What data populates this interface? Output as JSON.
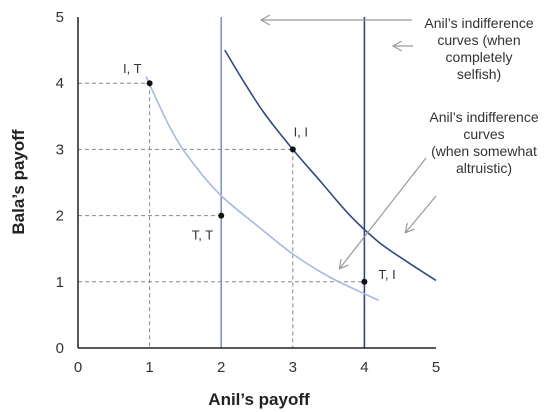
{
  "chart_data": {
    "type": "line",
    "xlabel": "Anil’s payoff",
    "ylabel": "Bala’s payoff",
    "xlim": [
      0,
      5
    ],
    "ylim": [
      0,
      5
    ],
    "xticks": [
      "0",
      "1",
      "2",
      "3",
      "4",
      "5"
    ],
    "yticks": [
      "0",
      "1",
      "2",
      "3",
      "4",
      "5"
    ],
    "grid": false,
    "points": [
      {
        "label": "I, T",
        "x": 1,
        "y": 4
      },
      {
        "label": "T, T",
        "x": 2,
        "y": 2
      },
      {
        "label": "I, I",
        "x": 3,
        "y": 3
      },
      {
        "label": "T, I",
        "x": 4,
        "y": 1
      }
    ],
    "vertical_lines": [
      {
        "x": 2,
        "color": "#7f96c8"
      },
      {
        "x": 4,
        "color": "#2f4a82"
      }
    ],
    "curves": [
      {
        "color": "#a8b8e0",
        "points": [
          [
            0.95,
            4.1
          ],
          [
            1.3,
            3.3
          ],
          [
            1.6,
            2.8
          ],
          [
            2.0,
            2.3
          ],
          [
            2.5,
            1.85
          ],
          [
            3.0,
            1.42
          ],
          [
            3.5,
            1.08
          ],
          [
            4.0,
            0.82
          ],
          [
            4.2,
            0.72
          ]
        ]
      },
      {
        "color": "#2f4a82",
        "points": [
          [
            2.05,
            4.5
          ],
          [
            2.3,
            4.05
          ],
          [
            2.6,
            3.55
          ],
          [
            3.0,
            3.0
          ],
          [
            3.4,
            2.5
          ],
          [
            3.8,
            2.0
          ],
          [
            4.2,
            1.6
          ],
          [
            4.6,
            1.3
          ],
          [
            5.0,
            1.02
          ]
        ]
      }
    ],
    "annotations": {
      "selfish": "Anil’s indifference curves (when completely selfish)",
      "selfish_lines": [
        "Anil’s indifference",
        "curves (when",
        "completely",
        "selfish)"
      ],
      "altruistic": "Anil’s indifference curves (when somewhat altruistic)",
      "altruistic_lines": [
        "Anil’s indifference",
        "curves",
        "(when somewhat",
        "altruistic)"
      ]
    },
    "colors": {
      "axis": "#222222",
      "guide": "#888888",
      "arrow": "#999999",
      "point": "#111111"
    }
  }
}
